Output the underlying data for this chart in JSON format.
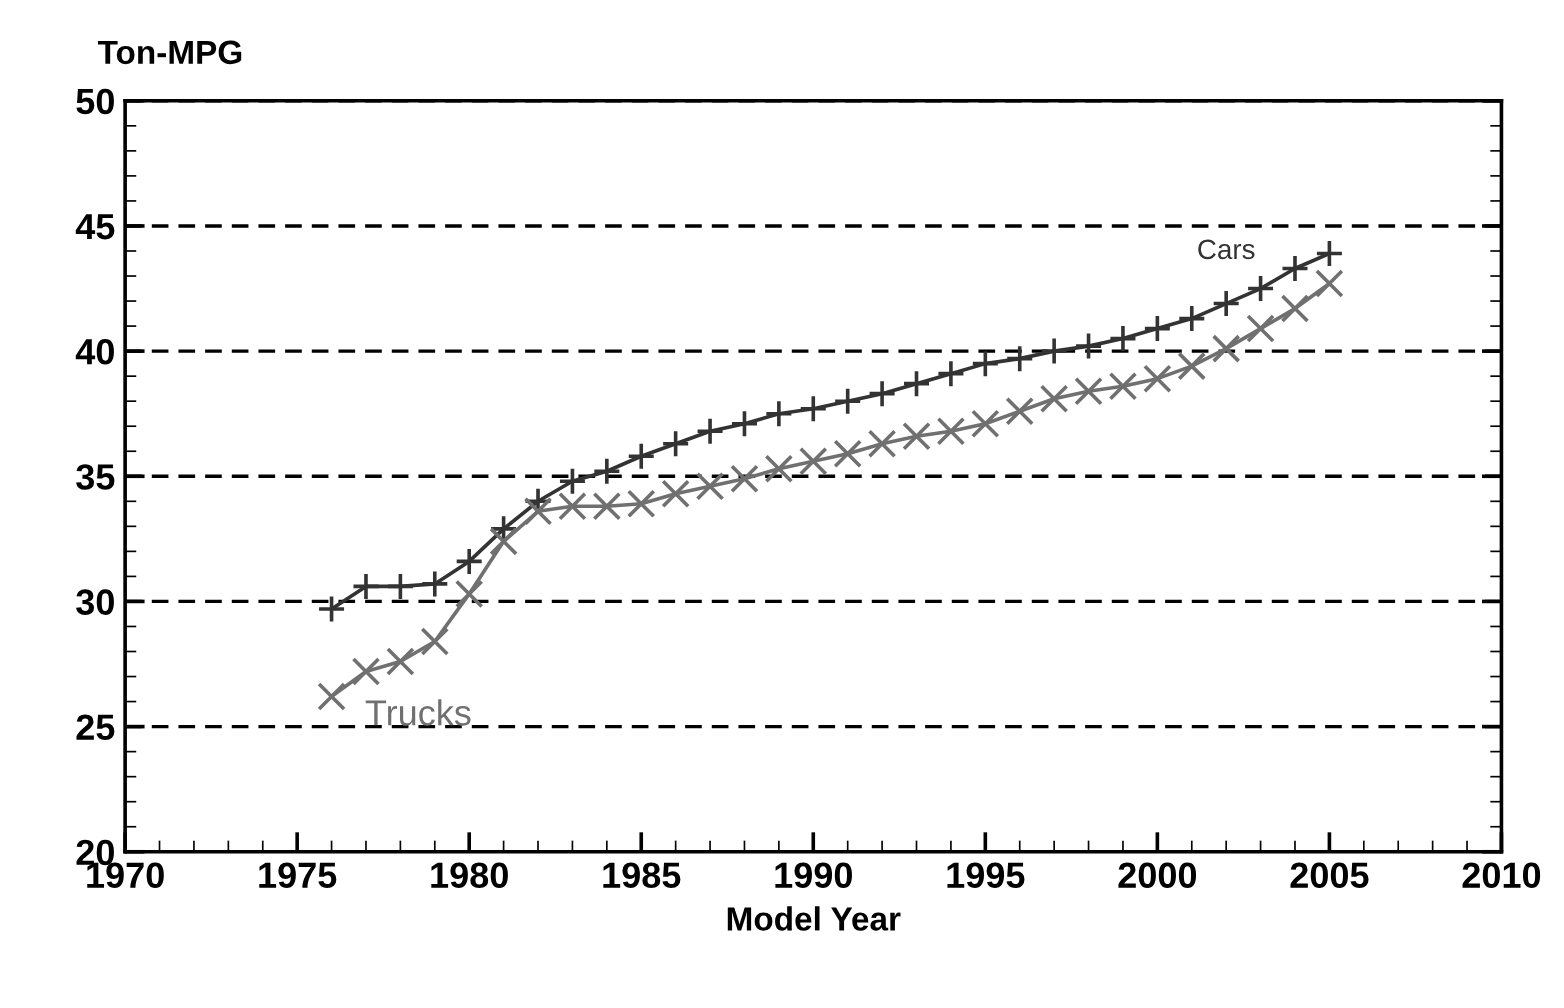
{
  "chart_data": {
    "type": "line",
    "ylabel": "Ton-MPG",
    "xlabel": "Model Year",
    "x": [
      1976,
      1977,
      1978,
      1979,
      1980,
      1981,
      1982,
      1983,
      1984,
      1985,
      1986,
      1987,
      1988,
      1989,
      1990,
      1991,
      1992,
      1993,
      1994,
      1995,
      1996,
      1997,
      1998,
      1999,
      2000,
      2001,
      2002,
      2003,
      2004,
      2005
    ],
    "series": [
      {
        "name": "Cars",
        "color": "#333333",
        "marker": "plus",
        "values": [
          29.7,
          30.6,
          30.6,
          30.7,
          31.6,
          32.9,
          34.0,
          34.8,
          35.2,
          35.8,
          36.3,
          36.8,
          37.1,
          37.5,
          37.7,
          38.0,
          38.3,
          38.7,
          39.1,
          39.5,
          39.7,
          40.0,
          40.2,
          40.5,
          40.9,
          41.3,
          41.9,
          42.5,
          43.3,
          43.9
        ]
      },
      {
        "name": "Trucks",
        "color": "#707070",
        "marker": "cross",
        "values": [
          26.2,
          27.2,
          27.6,
          28.4,
          30.3,
          32.4,
          33.6,
          33.8,
          33.8,
          33.9,
          34.3,
          34.6,
          34.9,
          35.3,
          35.6,
          35.9,
          36.3,
          36.6,
          36.8,
          37.1,
          37.6,
          38.1,
          38.4,
          38.6,
          38.9,
          39.4,
          40.1,
          40.9,
          41.7,
          42.7
        ]
      }
    ],
    "xlim": [
      1970,
      2010
    ],
    "xticks": [
      1970,
      1975,
      1980,
      1985,
      1990,
      1995,
      2000,
      2005,
      2010
    ],
    "ylim": [
      20,
      50
    ],
    "yticks": [
      20,
      25,
      30,
      35,
      40,
      45,
      50
    ],
    "grid": "y",
    "line_style": "solid"
  }
}
